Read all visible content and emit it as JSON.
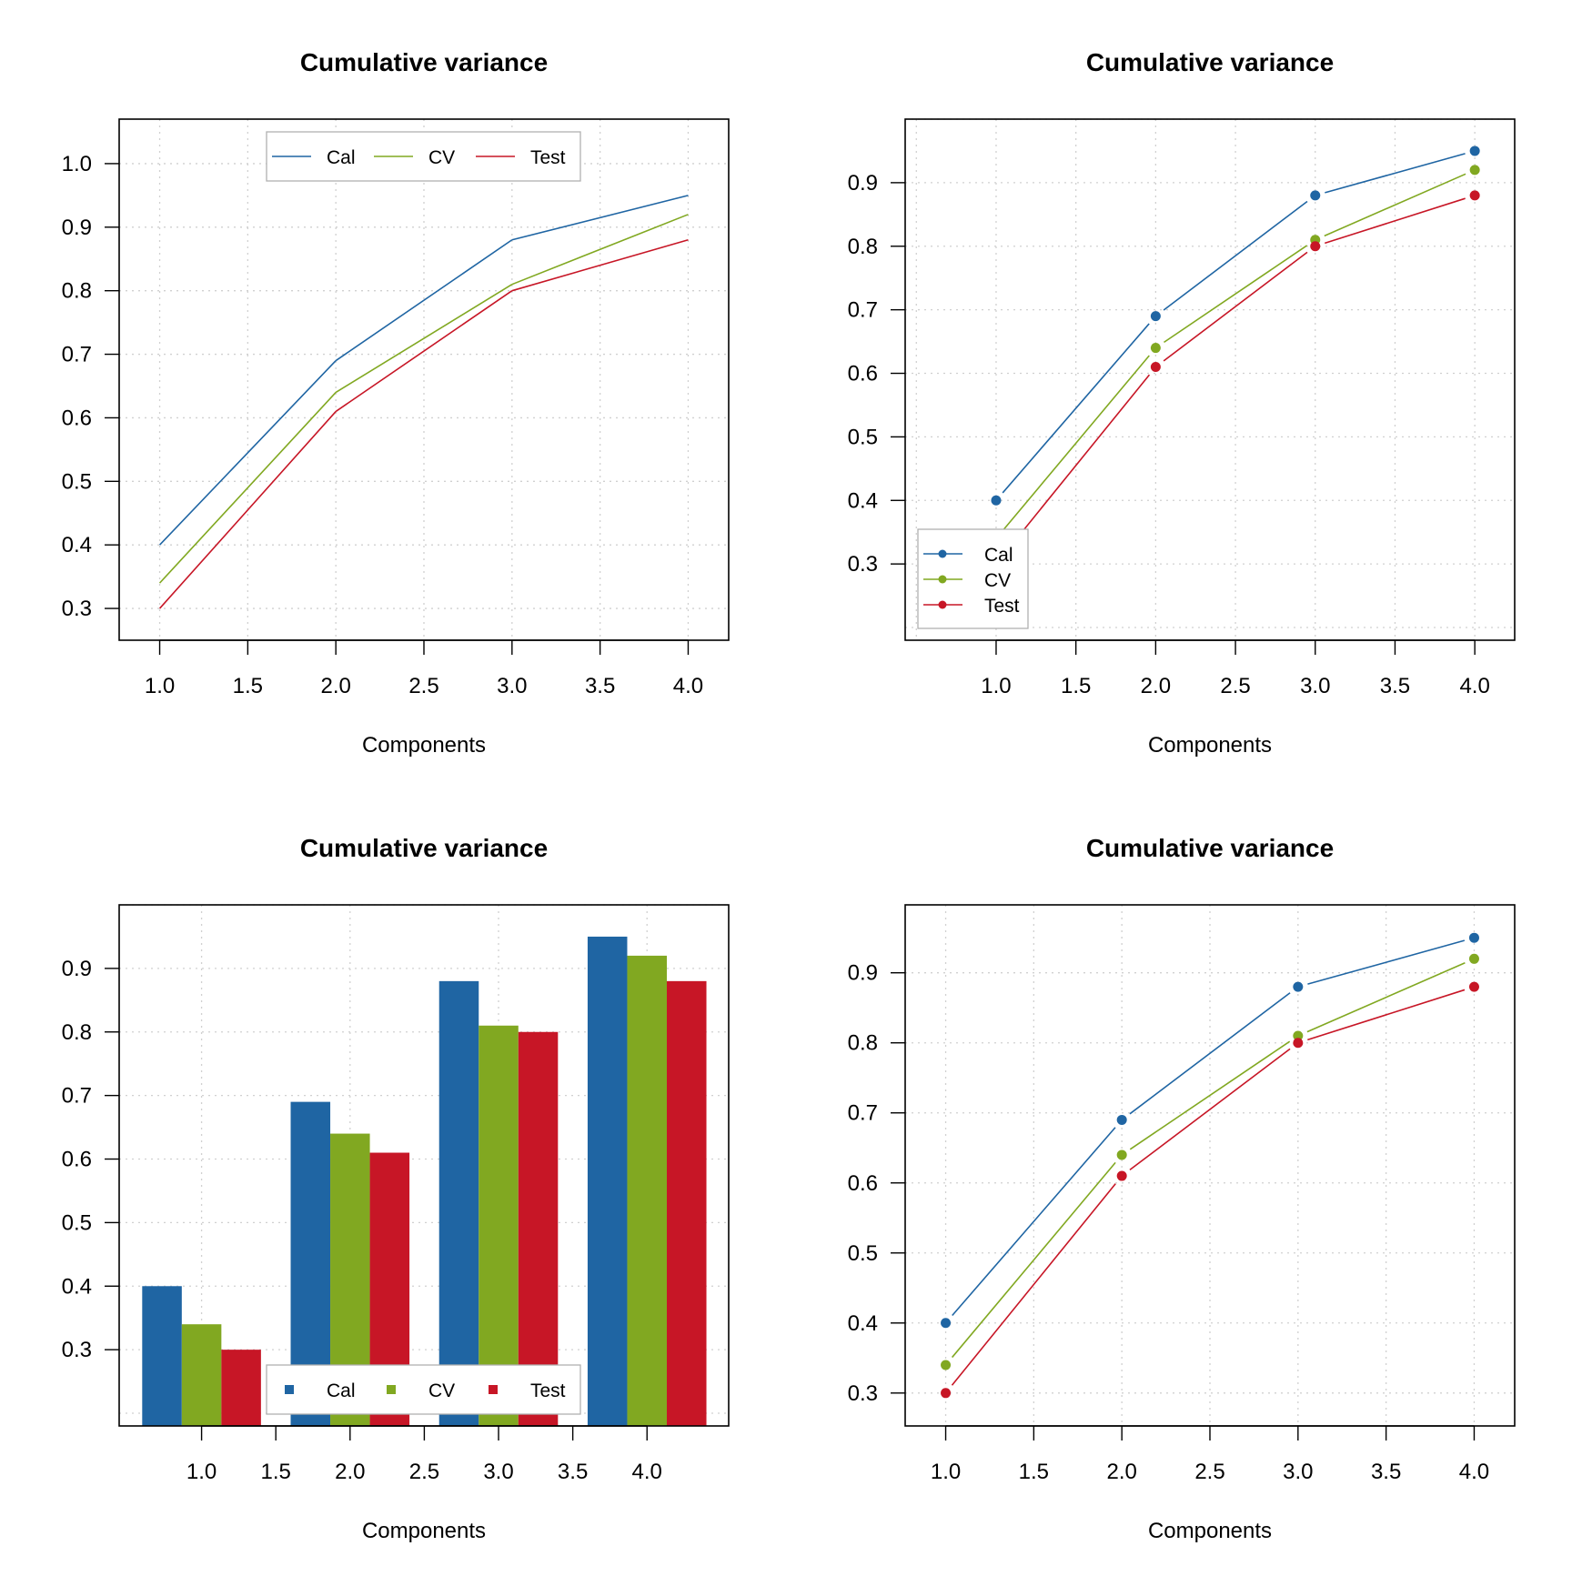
{
  "colors": {
    "Cal": "#1f65a3",
    "CV": "#81a821",
    "Test": "#c71626"
  },
  "chart_data": [
    {
      "type": "line",
      "title": "Cumulative variance",
      "xlabel": "Components",
      "ylabel": "",
      "x": [
        1,
        2,
        3,
        4
      ],
      "series": [
        {
          "name": "Cal",
          "values": [
            0.4,
            0.69,
            0.88,
            0.95
          ]
        },
        {
          "name": "CV",
          "values": [
            0.34,
            0.64,
            0.81,
            0.92
          ]
        },
        {
          "name": "Test",
          "values": [
            0.3,
            0.61,
            0.8,
            0.88
          ]
        }
      ],
      "xlim": [
        0.77,
        4.23
      ],
      "ylim": [
        0.25,
        1.07
      ],
      "xticks": [
        "1.0",
        "1.5",
        "2.0",
        "2.5",
        "3.0",
        "3.5",
        "4.0"
      ],
      "yticks": [
        "0.3",
        "0.4",
        "0.5",
        "0.6",
        "0.7",
        "0.8",
        "0.9",
        "1.0"
      ],
      "markers": false,
      "grid": true,
      "legend": "top-center",
      "legend_orientation": "horizontal"
    },
    {
      "type": "line",
      "title": "Cumulative variance",
      "xlabel": "Components",
      "ylabel": "",
      "x": [
        1,
        2,
        3,
        4
      ],
      "series": [
        {
          "name": "Cal",
          "values": [
            0.4,
            0.69,
            0.88,
            0.95
          ]
        },
        {
          "name": "CV",
          "values": [
            0.34,
            0.64,
            0.81,
            0.92
          ]
        },
        {
          "name": "Test",
          "values": [
            0.3,
            0.61,
            0.8,
            0.88
          ]
        }
      ],
      "xlim": [
        0.43,
        4.25
      ],
      "ylim": [
        0.18,
        1.0
      ],
      "xticks": [
        "1.0",
        "1.5",
        "2.0",
        "2.5",
        "3.0",
        "3.5",
        "4.0"
      ],
      "yticks": [
        "0.3",
        "0.4",
        "0.5",
        "0.6",
        "0.7",
        "0.8",
        "0.9"
      ],
      "markers": true,
      "grid": true,
      "legend": "bottom-left",
      "legend_orientation": "vertical"
    },
    {
      "type": "bar",
      "title": "Cumulative variance",
      "xlabel": "Components",
      "ylabel": "",
      "x": [
        1,
        2,
        3,
        4
      ],
      "series": [
        {
          "name": "Cal",
          "values": [
            0.4,
            0.69,
            0.88,
            0.95
          ]
        },
        {
          "name": "CV",
          "values": [
            0.34,
            0.64,
            0.81,
            0.92
          ]
        },
        {
          "name": "Test",
          "values": [
            0.3,
            0.61,
            0.8,
            0.88
          ]
        }
      ],
      "xlim": [
        0.445,
        4.55
      ],
      "ylim": [
        0.18,
        1.0
      ],
      "xticks": [
        "1.0",
        "1.5",
        "2.0",
        "2.5",
        "3.0",
        "3.5",
        "4.0"
      ],
      "yticks": [
        "0.3",
        "0.4",
        "0.5",
        "0.6",
        "0.7",
        "0.8",
        "0.9"
      ],
      "grid": true,
      "legend": "bottom-center",
      "legend_orientation": "horizontal"
    },
    {
      "type": "line",
      "title": "Cumulative variance",
      "xlabel": "Components",
      "ylabel": "",
      "x": [
        1,
        2,
        3,
        4
      ],
      "series": [
        {
          "name": "Cal",
          "values": [
            0.4,
            0.69,
            0.88,
            0.95
          ]
        },
        {
          "name": "CV",
          "values": [
            0.34,
            0.64,
            0.81,
            0.92
          ]
        },
        {
          "name": "Test",
          "values": [
            0.3,
            0.61,
            0.8,
            0.88
          ]
        }
      ],
      "xlim": [
        0.77,
        4.23
      ],
      "ylim": [
        0.253,
        0.997
      ],
      "xticks": [
        "1.0",
        "1.5",
        "2.0",
        "2.5",
        "3.0",
        "3.5",
        "4.0"
      ],
      "yticks": [
        "0.3",
        "0.4",
        "0.5",
        "0.6",
        "0.7",
        "0.8",
        "0.9"
      ],
      "markers": true,
      "grid": true,
      "legend": "none"
    }
  ]
}
